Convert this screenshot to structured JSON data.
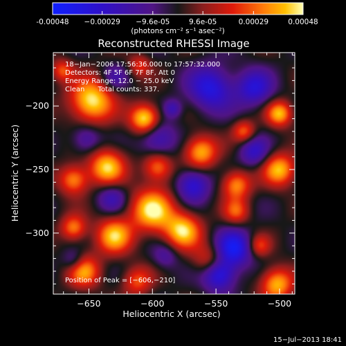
{
  "colors": {
    "background": "#000000",
    "foreground": "#ffffff"
  },
  "colorbar": {
    "ticks": [
      -0.00048,
      -0.00029,
      -9.6e-05,
      9.6e-05,
      0.00029,
      0.00048
    ],
    "tick_labels": [
      "-0.00048",
      "−0.00029",
      "−9.6e-05",
      "9.6e-05",
      "0.00029",
      "0.00048"
    ],
    "units_label": "(photons cm⁻² s⁻¹ asec⁻²)",
    "colormap": [
      [
        0.0,
        "#1020ff"
      ],
      [
        0.2,
        "#3010c8"
      ],
      [
        0.4,
        "#501484"
      ],
      [
        0.5,
        "#181818"
      ],
      [
        0.6,
        "#8c1e1e"
      ],
      [
        0.72,
        "#e01a0a"
      ],
      [
        0.84,
        "#ff7a0a"
      ],
      [
        0.93,
        "#ffc000"
      ],
      [
        1.0,
        "#ffffb0"
      ]
    ]
  },
  "chart_data": {
    "type": "heatmap",
    "title": "Reconstructed RHESSI Image",
    "xlabel": "Heliocentric X (arcsec)",
    "ylabel": "Heliocentric Y (arcsec)",
    "xlim": [
      -678,
      -488
    ],
    "ylim": [
      -348,
      -158
    ],
    "xticks": [
      -650,
      -600,
      -550,
      -500
    ],
    "xtick_labels": [
      "−650",
      "−600",
      "−550",
      "−500"
    ],
    "yticks": [
      -200,
      -250,
      -300
    ],
    "ytick_labels": [
      "−200",
      "−250",
      "−300"
    ],
    "value_range": [
      -0.00048,
      0.00048
    ],
    "sources": [
      {
        "x": -648,
        "y": -196,
        "sigma": 12,
        "amp": 1.0
      },
      {
        "x": -606,
        "y": -210,
        "sigma": 8,
        "amp": 1.05
      },
      {
        "x": -636,
        "y": -248,
        "sigma": 10,
        "amp": 0.9
      },
      {
        "x": -562,
        "y": -236,
        "sigma": 9,
        "amp": 0.85
      },
      {
        "x": -596,
        "y": -248,
        "sigma": 8,
        "amp": 0.7
      },
      {
        "x": -662,
        "y": -258,
        "sigma": 8,
        "amp": 0.75
      },
      {
        "x": -600,
        "y": -282,
        "sigma": 12,
        "amp": 0.95
      },
      {
        "x": -576,
        "y": -298,
        "sigma": 10,
        "amp": 0.9
      },
      {
        "x": -630,
        "y": -302,
        "sigma": 10,
        "amp": 0.85
      },
      {
        "x": -662,
        "y": -296,
        "sigma": 7,
        "amp": 0.7
      },
      {
        "x": -654,
        "y": -330,
        "sigma": 9,
        "amp": 0.75
      },
      {
        "x": -534,
        "y": -262,
        "sigma": 8,
        "amp": 0.75
      },
      {
        "x": -534,
        "y": -283,
        "sigma": 7,
        "amp": 0.55
      },
      {
        "x": -500,
        "y": -206,
        "sigma": 7,
        "amp": 0.85
      },
      {
        "x": -500,
        "y": -250,
        "sigma": 9,
        "amp": 0.85
      },
      {
        "x": -528,
        "y": -220,
        "sigma": 6,
        "amp": 0.6
      },
      {
        "x": -502,
        "y": -340,
        "sigma": 9,
        "amp": 0.85
      },
      {
        "x": -555,
        "y": -322,
        "sigma": 9,
        "amp": 0.55
      },
      {
        "x": -516,
        "y": -310,
        "sigma": 6,
        "amp": 0.5
      },
      {
        "x": -612,
        "y": -338,
        "sigma": 8,
        "amp": 0.55
      },
      {
        "x": -610,
        "y": -168,
        "sigma": 6,
        "amp": 0.45
      },
      {
        "x": -671,
        "y": -172,
        "sigma": 6,
        "amp": 0.55
      },
      {
        "x": -584,
        "y": -202,
        "sigma": 5,
        "amp": -0.45
      },
      {
        "x": -554,
        "y": -186,
        "sigma": 12,
        "amp": -0.75
      },
      {
        "x": -520,
        "y": -186,
        "sigma": 10,
        "amp": -0.65
      },
      {
        "x": -596,
        "y": -226,
        "sigma": 10,
        "amp": -0.55
      },
      {
        "x": -652,
        "y": -226,
        "sigma": 8,
        "amp": -0.45
      },
      {
        "x": -568,
        "y": -262,
        "sigma": 9,
        "amp": -0.7
      },
      {
        "x": -536,
        "y": -312,
        "sigma": 10,
        "amp": -0.85
      },
      {
        "x": -548,
        "y": -332,
        "sigma": 9,
        "amp": -0.9
      },
      {
        "x": -520,
        "y": -236,
        "sigma": 8,
        "amp": -0.55
      },
      {
        "x": -632,
        "y": -272,
        "sigma": 8,
        "amp": -0.45
      },
      {
        "x": -662,
        "y": -322,
        "sigma": 6,
        "amp": -0.4
      },
      {
        "x": -630,
        "y": -178,
        "sigma": 7,
        "amp": -0.35
      },
      {
        "x": -590,
        "y": -318,
        "sigma": 7,
        "amp": -0.35
      }
    ]
  },
  "annotations": {
    "lines": [
      "18−Jan−2006 17:56:36.000 to 17:57:32.000",
      "Detectors: 4F 5F 6F 7F 8F, Att 0",
      "Energy Range: 12.0 − 25.0 keV",
      "Clean      Total counts: 337."
    ],
    "peak": "Position of Peak = [−606,−210]"
  },
  "footer": {
    "timestamp": "15−Jul−2013 18:41"
  }
}
